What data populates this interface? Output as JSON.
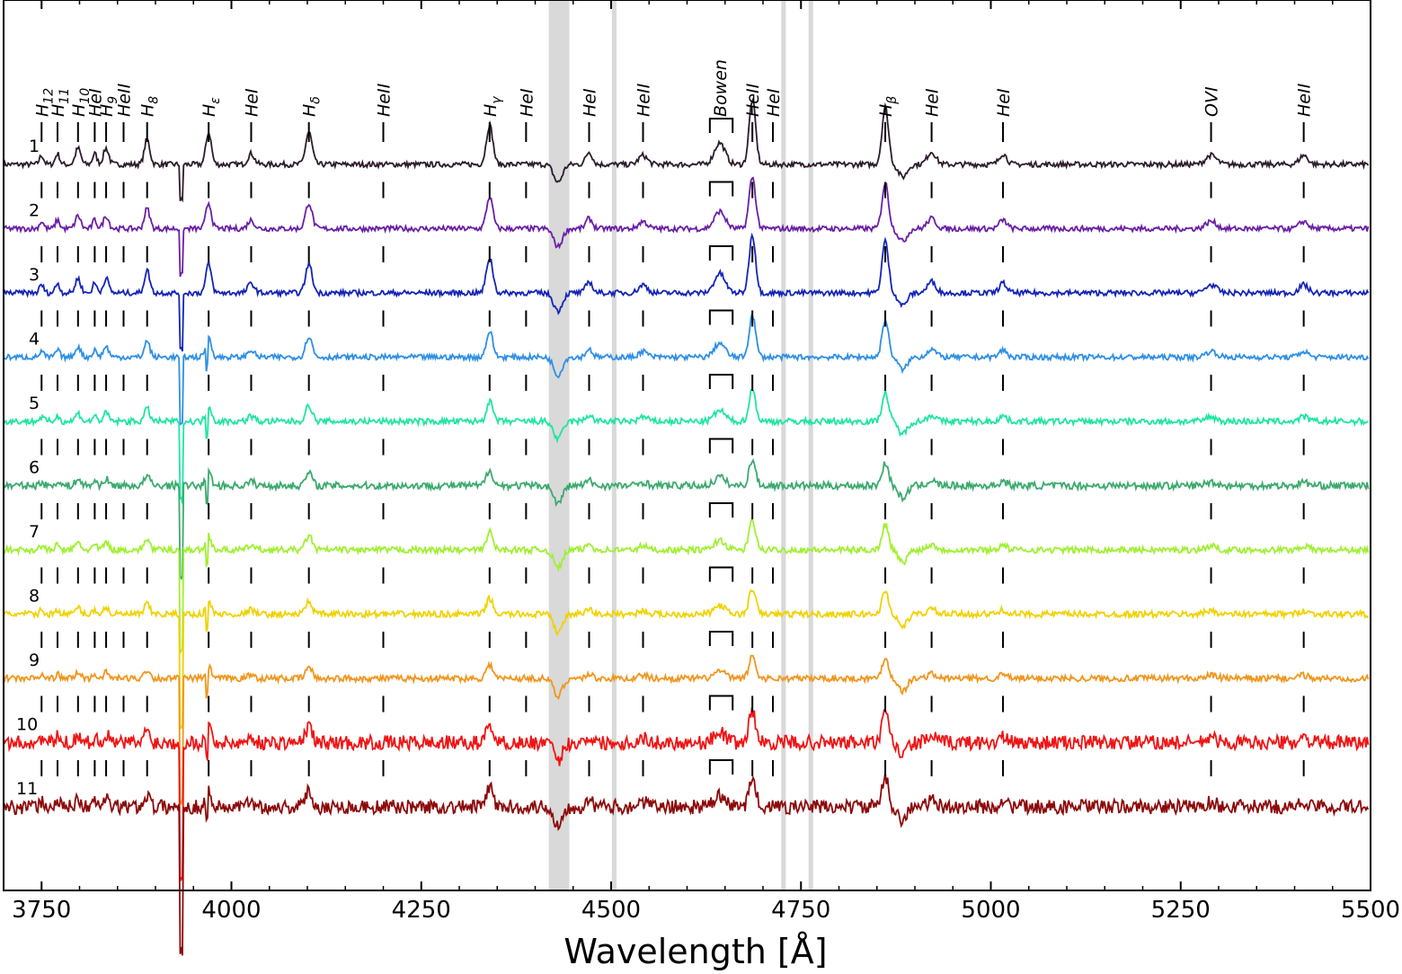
{
  "chart_data": {
    "type": "line",
    "xlabel": "Wavelength [Å]",
    "xlim": [
      3700,
      5500
    ],
    "x_ticks": [
      3750,
      4000,
      4250,
      4500,
      4750,
      5000,
      5250,
      5500
    ],
    "x_tick_labels": [
      "3750",
      "4000",
      "4250",
      "4500",
      "4750",
      "5000",
      "5250",
      "5500"
    ],
    "y_ticks_visible": false,
    "grid": false,
    "legend": "none",
    "shaded_bands": [
      {
        "x0": 4418,
        "x1": 4445,
        "color": "#d9d9d9"
      },
      {
        "x0": 4501,
        "x1": 4507,
        "color": "#d9d9d9"
      },
      {
        "x0": 4724,
        "x1": 4730,
        "color": "#d9d9d9"
      },
      {
        "x0": 4760,
        "x1": 4766,
        "color": "#d9d9d9"
      }
    ],
    "lines": [
      {
        "label": "H12",
        "sub": "12",
        "wl": 3750
      },
      {
        "label": "H11",
        "sub": "11",
        "wl": 3771
      },
      {
        "label": "H10",
        "sub": "10",
        "wl": 3798
      },
      {
        "label": "HeI",
        "wl": 3820
      },
      {
        "label": "H9",
        "sub": "9",
        "wl": 3835
      },
      {
        "label": "HeII",
        "wl": 3858
      },
      {
        "label": "H8",
        "sub": "8",
        "wl": 3889
      },
      {
        "label": "Hε",
        "sub": "ε",
        "wl": 3970
      },
      {
        "label": "HeI",
        "wl": 4026
      },
      {
        "label": "Hδ",
        "sub": "δ",
        "wl": 4102
      },
      {
        "label": "HeII",
        "wl": 4200
      },
      {
        "label": "Hγ",
        "sub": "γ",
        "wl": 4340
      },
      {
        "label": "HeI",
        "wl": 4388
      },
      {
        "label": "HeI",
        "wl": 4471
      },
      {
        "label": "HeII",
        "wl": 4542
      },
      {
        "label": "Bowen",
        "wl": 4643,
        "bracket": [
          4630,
          4660
        ]
      },
      {
        "label": "HeII",
        "wl": 4686
      },
      {
        "label": "HeI",
        "wl": 4713
      },
      {
        "label": "Hβ",
        "sub": "β",
        "wl": 4861
      },
      {
        "label": "HeI",
        "wl": 4922
      },
      {
        "label": "HeI",
        "wl": 5016
      },
      {
        "label": "OVI",
        "wl": 5290
      },
      {
        "label": "HeII",
        "wl": 5412
      }
    ],
    "series": [
      {
        "name": "1",
        "color": "#2d1b2e",
        "amp": 1.0,
        "noise": 3
      },
      {
        "name": "2",
        "color": "#6a1fa6",
        "amp": 0.8,
        "noise": 3
      },
      {
        "name": "3",
        "color": "#1424b8",
        "amp": 0.9,
        "noise": 3
      },
      {
        "name": "4",
        "color": "#2e8fe6",
        "amp": 0.65,
        "noise": 3
      },
      {
        "name": "5",
        "color": "#1ee6a0",
        "amp": 0.5,
        "noise": 3.5
      },
      {
        "name": "6",
        "color": "#3caa6e",
        "amp": 0.4,
        "noise": 4
      },
      {
        "name": "7",
        "color": "#a0f032",
        "amp": 0.45,
        "noise": 3.5
      },
      {
        "name": "8",
        "color": "#f0d200",
        "amp": 0.4,
        "noise": 3.5
      },
      {
        "name": "9",
        "color": "#f0961e",
        "amp": 0.35,
        "noise": 3.5
      },
      {
        "name": "10",
        "color": "#f01414",
        "amp": 0.5,
        "noise": 8
      },
      {
        "name": "11",
        "color": "#8c0a0a",
        "amp": 0.5,
        "noise": 8
      }
    ]
  }
}
